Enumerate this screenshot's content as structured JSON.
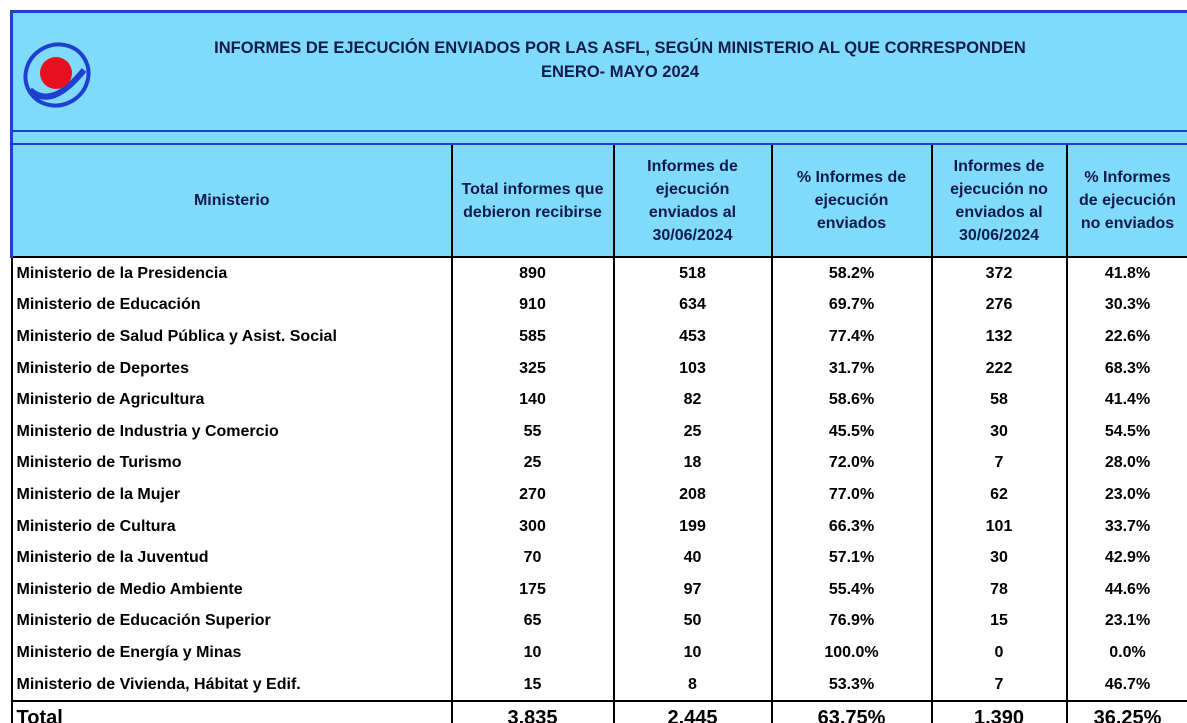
{
  "header": {
    "title": "INFORMES DE EJECUCIÓN ENVIADOS POR LAS ASFL, SEGÚN MINISTERIO AL QUE CORRESPONDEN",
    "subtitle": "ENERO- MAYO 2024"
  },
  "table": {
    "columns": [
      "Ministerio",
      "Total informes que debieron recibirse",
      "Informes de ejecución enviados al 30/06/2024",
      "% Informes de ejecución enviados",
      "Informes de ejecución no enviados al 30/06/2024",
      "% Informes de ejecución no enviados"
    ],
    "rows": [
      [
        "Ministerio de la Presidencia",
        "890",
        "518",
        "58.2%",
        "372",
        "41.8%"
      ],
      [
        "Ministerio de Educación",
        "910",
        "634",
        "69.7%",
        "276",
        "30.3%"
      ],
      [
        "Ministerio de Salud Pública y Asist. Social",
        "585",
        "453",
        "77.4%",
        "132",
        "22.6%"
      ],
      [
        "Ministerio de Deportes",
        "325",
        "103",
        "31.7%",
        "222",
        "68.3%"
      ],
      [
        "Ministerio de Agricultura",
        "140",
        "82",
        "58.6%",
        "58",
        "41.4%"
      ],
      [
        "Ministerio de Industria y Comercio",
        "55",
        "25",
        "45.5%",
        "30",
        "54.5%"
      ],
      [
        "Ministerio de Turismo",
        "25",
        "18",
        "72.0%",
        "7",
        "28.0%"
      ],
      [
        "Ministerio de la Mujer",
        "270",
        "208",
        "77.0%",
        "62",
        "23.0%"
      ],
      [
        "Ministerio de Cultura",
        "300",
        "199",
        "66.3%",
        "101",
        "33.7%"
      ],
      [
        "Ministerio de la Juventud",
        "70",
        "40",
        "57.1%",
        "30",
        "42.9%"
      ],
      [
        "Ministerio de Medio Ambiente",
        "175",
        "97",
        "55.4%",
        "78",
        "44.6%"
      ],
      [
        "Ministerio de Educación Superior",
        "65",
        "50",
        "76.9%",
        "15",
        "23.1%"
      ],
      [
        "Ministerio de Energía y Minas",
        "10",
        "10",
        "100.0%",
        "0",
        "0.0%"
      ],
      [
        "Ministerio de Vivienda, Hábitat y  Edif.",
        "15",
        "8",
        "53.3%",
        "7",
        "46.7%"
      ]
    ],
    "total": [
      "Total",
      "3,835",
      "2,445",
      "63.75%",
      "1,390",
      "36.25%"
    ]
  }
}
